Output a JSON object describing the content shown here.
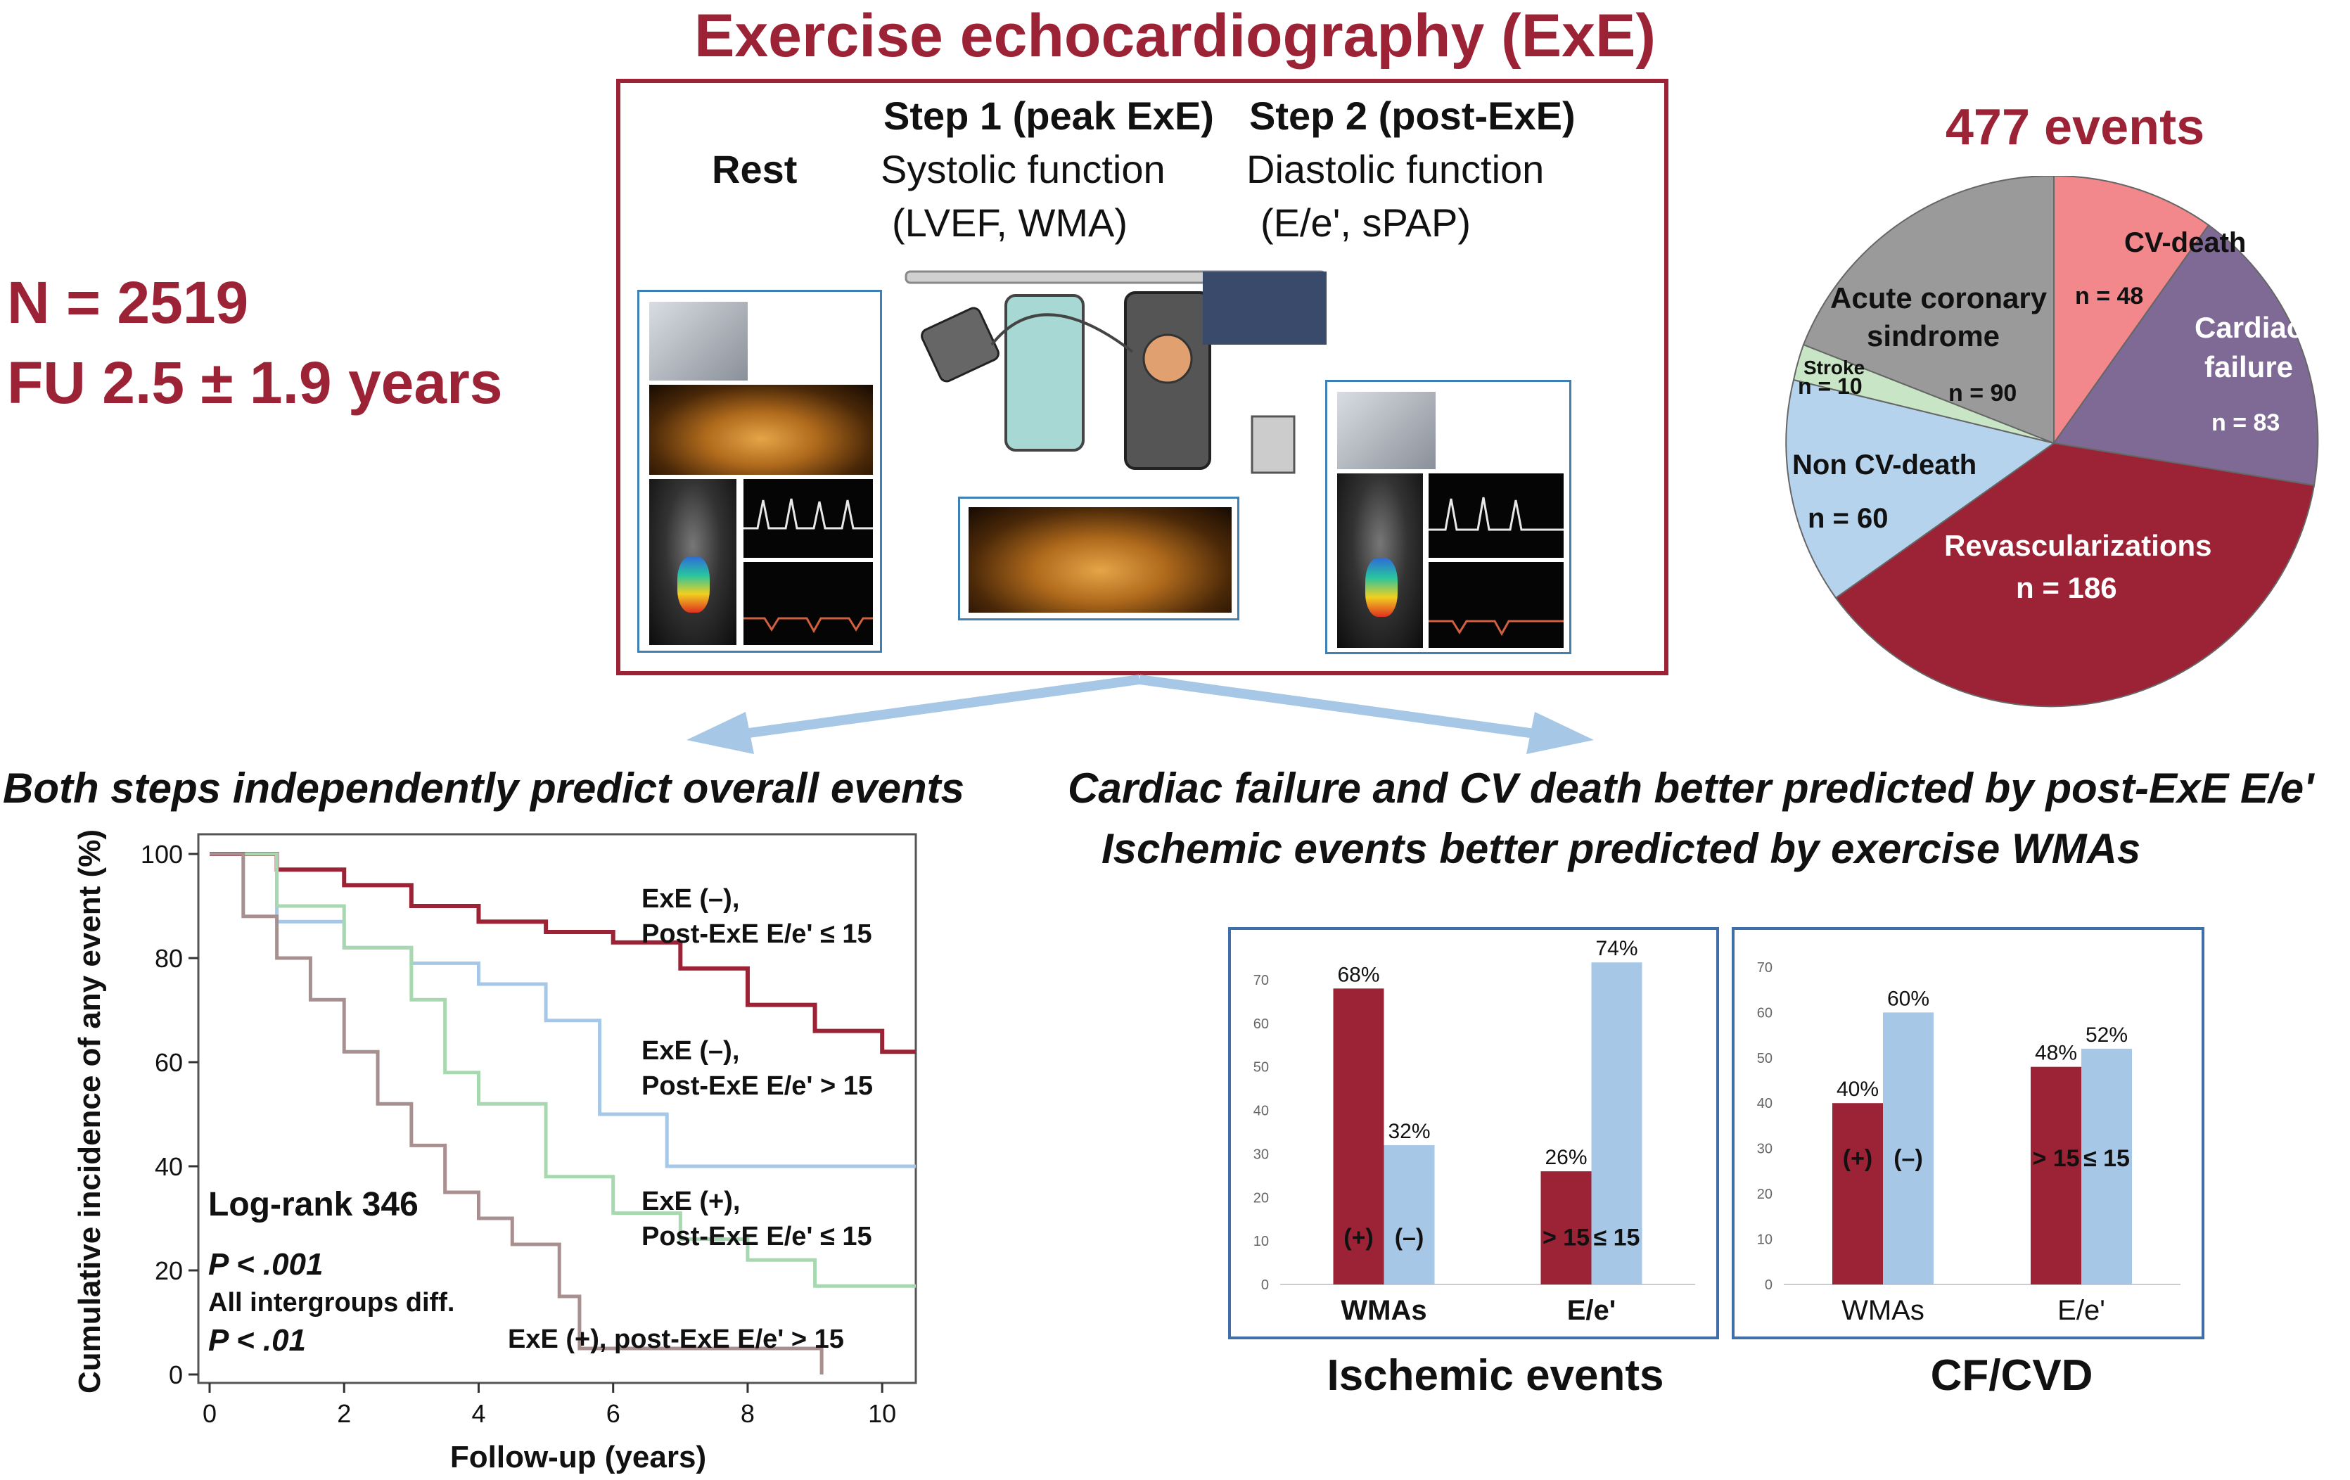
{
  "title": "Exercise echocardiography (ExE)",
  "stats": {
    "n": "N = 2519",
    "fu": "FU 2.5 ± 1.9 years"
  },
  "steps": {
    "rest": "Rest",
    "step1_title": "Step 1 (peak ExE)",
    "step1_sub1": "Systolic function",
    "step1_sub2": "(LVEF, WMA)",
    "step2_title": "Step 2 (post-ExE)",
    "step2_sub1": "Diastolic function",
    "step2_sub2": "(E/e', sPAP)"
  },
  "events": {
    "title": "477 events",
    "slices": [
      {
        "name": "CV-death",
        "value": "n = 48",
        "color": "#f2888c"
      },
      {
        "name": "Cardiac failure",
        "line1": "Cardiac",
        "line2": "failure",
        "value": "n = 83",
        "color": "#7f6a96"
      },
      {
        "name": "Revascularizations",
        "value": "n = 186",
        "color": "#9b2335"
      },
      {
        "name": "Non CV-death",
        "value": "n = 60",
        "color": "#b6d3ee"
      },
      {
        "name": "Stroke",
        "value": "n = 10",
        "color": "#c8e6c5"
      },
      {
        "name": "Acute coronary sindrome",
        "line1": "Acute coronary",
        "line2": "sindrome",
        "value": "n = 90",
        "color": "#9a9a9a"
      }
    ]
  },
  "headings": {
    "left": "Both steps independently predict overall events",
    "right1": "Cardiac failure and CV death better predicted by post-ExE E/e'",
    "right2": "Ischemic events better predicted by exercise WMAs"
  },
  "km": {
    "ylabel": "Cumulative incidence of any event (%)",
    "xlabel": "Follow-up (years)",
    "yticks": [
      "0",
      "20",
      "40",
      "60",
      "80",
      "100"
    ],
    "xticks": [
      "0",
      "2",
      "4",
      "6",
      "8",
      "10"
    ],
    "curves": [
      {
        "label1": "ExE (–),",
        "label2": "Post-ExE E/e' ≤ 15",
        "color": "#9b2335"
      },
      {
        "label1": "ExE (–),",
        "label2": "Post-ExE E/e' > 15",
        "color": "#a7c7e7"
      },
      {
        "label1": "ExE (+),",
        "label2": "Post-ExE E/e' ≤ 15",
        "color": "#a8d8b0"
      },
      {
        "label1": "ExE (+), post-ExE E/e' > 15",
        "label2": "",
        "color": "#a89090"
      }
    ],
    "logrank": "Log-rank 346",
    "p1": "P < .001",
    "diff": "All intergroups diff.",
    "p2": "P < .01"
  },
  "chart_data": [
    {
      "type": "line",
      "title": "Both steps independently predict overall events",
      "xlabel": "Follow-up (years)",
      "ylabel": "Cumulative incidence of any event (%)",
      "xlim": [
        0,
        10.5
      ],
      "ylim": [
        0,
        100
      ],
      "series": [
        {
          "name": "ExE (–), Post-ExE E/e' ≤ 15",
          "x": [
            0,
            1,
            2,
            3,
            4,
            5,
            6,
            7,
            8,
            9,
            10,
            10.5
          ],
          "y": [
            100,
            97,
            94,
            90,
            87,
            85,
            83,
            78,
            71,
            66,
            62,
            62
          ]
        },
        {
          "name": "ExE (–), Post-ExE E/e' > 15",
          "x": [
            0,
            1,
            2,
            3,
            4,
            5,
            5.8,
            6.8,
            10.5
          ],
          "y": [
            100,
            87,
            82,
            79,
            75,
            68,
            50,
            40,
            40
          ]
        },
        {
          "name": "ExE (+), Post-ExE E/e' ≤ 15",
          "x": [
            0,
            1,
            2,
            3,
            3.5,
            4,
            5,
            6,
            7,
            8,
            9,
            10.5
          ],
          "y": [
            100,
            90,
            82,
            72,
            58,
            52,
            38,
            31,
            26,
            22,
            17,
            17
          ]
        },
        {
          "name": "ExE (+), post-ExE E/e' > 15",
          "x": [
            0,
            0.5,
            1,
            1.5,
            2,
            2.5,
            3,
            3.5,
            4,
            4.5,
            5,
            5.2,
            5.5,
            6,
            9.1
          ],
          "y": [
            100,
            88,
            80,
            72,
            62,
            52,
            44,
            35,
            30,
            25,
            25,
            15,
            5,
            5,
            0
          ]
        }
      ]
    },
    {
      "type": "bar",
      "title": "Ischemic events",
      "categories": [
        "WMAs",
        "E/e'"
      ],
      "series": [
        {
          "name": "(+) / > 15",
          "values": [
            68,
            26
          ]
        },
        {
          "name": "(–) / ≤ 15",
          "values": [
            32,
            74
          ]
        }
      ],
      "ylim": [
        0,
        75
      ],
      "yticks": [
        "0",
        "10",
        "20",
        "30",
        "40",
        "50",
        "60",
        "70"
      ],
      "value_labels": [
        [
          "68%",
          "26%"
        ],
        [
          "32%",
          "74%"
        ]
      ],
      "bar_labels": [
        [
          "(+)",
          "> 15"
        ],
        [
          "(–)",
          "≤ 15"
        ]
      ]
    },
    {
      "type": "bar",
      "title": "CF/CVD",
      "categories": [
        "WMAs",
        "E/e'"
      ],
      "series": [
        {
          "name": "(+) / > 15",
          "values": [
            40,
            48
          ]
        },
        {
          "name": "(–) / ≤ 15",
          "values": [
            60,
            52
          ]
        }
      ],
      "ylim": [
        0,
        72
      ],
      "yticks": [
        "0",
        "10",
        "20",
        "30",
        "40",
        "50",
        "60",
        "70"
      ],
      "value_labels": [
        [
          "40%",
          "48%"
        ],
        [
          "60%",
          "52%"
        ]
      ],
      "bar_labels": [
        [
          "(+)",
          "> 15"
        ],
        [
          "(–)",
          "≤ 15"
        ]
      ]
    }
  ],
  "colors": {
    "maroon": "#9b2335",
    "light_blue": "#a7c7e7",
    "box_blue": "#3e6fa8"
  }
}
